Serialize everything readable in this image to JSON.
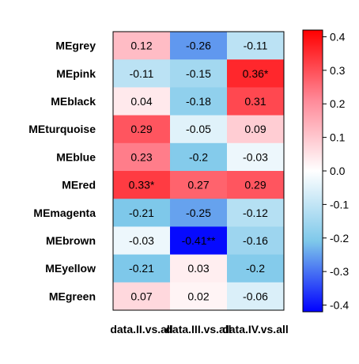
{
  "chart_data": {
    "type": "heatmap",
    "rows": [
      "MEgrey",
      "MEpink",
      "MEblack",
      "MEturquoise",
      "MEblue",
      "MEred",
      "MEmagenta",
      "MEbrown",
      "MEyellow",
      "MEgreen"
    ],
    "columns": [
      "data.II.vs.all",
      "data.III.vs.all",
      "data.IV.vs.all"
    ],
    "values": [
      [
        0.12,
        -0.26,
        -0.11
      ],
      [
        -0.11,
        -0.15,
        0.36
      ],
      [
        0.04,
        -0.18,
        0.31
      ],
      [
        0.29,
        -0.05,
        0.09
      ],
      [
        0.23,
        -0.2,
        -0.03
      ],
      [
        0.33,
        0.27,
        0.29
      ],
      [
        -0.21,
        -0.25,
        -0.12
      ],
      [
        -0.03,
        -0.41,
        -0.16
      ],
      [
        -0.21,
        0.03,
        -0.2
      ],
      [
        0.07,
        0.02,
        -0.06
      ]
    ],
    "labels": [
      [
        "0.12",
        "-0.26",
        "-0.11"
      ],
      [
        "-0.11",
        "-0.15",
        "0.36*"
      ],
      [
        "0.04",
        "-0.18",
        "0.31"
      ],
      [
        "0.29",
        "-0.05",
        "0.09"
      ],
      [
        "0.23",
        "-0.2",
        "-0.03"
      ],
      [
        "0.33*",
        "0.27",
        "0.29"
      ],
      [
        "-0.21",
        "-0.25",
        "-0.12"
      ],
      [
        "-0.03",
        "-0.41**",
        "-0.16"
      ],
      [
        "-0.21",
        "0.03",
        "-0.2"
      ],
      [
        "0.07",
        "0.02",
        "-0.06"
      ]
    ],
    "colorbar": {
      "range": [
        -0.42,
        0.42
      ],
      "ticks": [
        0.4,
        0.3,
        0.2,
        0.1,
        0.0,
        -0.1,
        -0.2,
        -0.3,
        -0.4
      ],
      "tick_labels": [
        "0.4",
        "0.3",
        "0.2",
        "0.1",
        "0.0",
        "-0.1",
        "-0.2",
        "-0.3",
        "-0.4"
      ],
      "colors": {
        "low": "#0000ff",
        "mid": "#ffffff",
        "high": "#ff0000"
      }
    }
  }
}
